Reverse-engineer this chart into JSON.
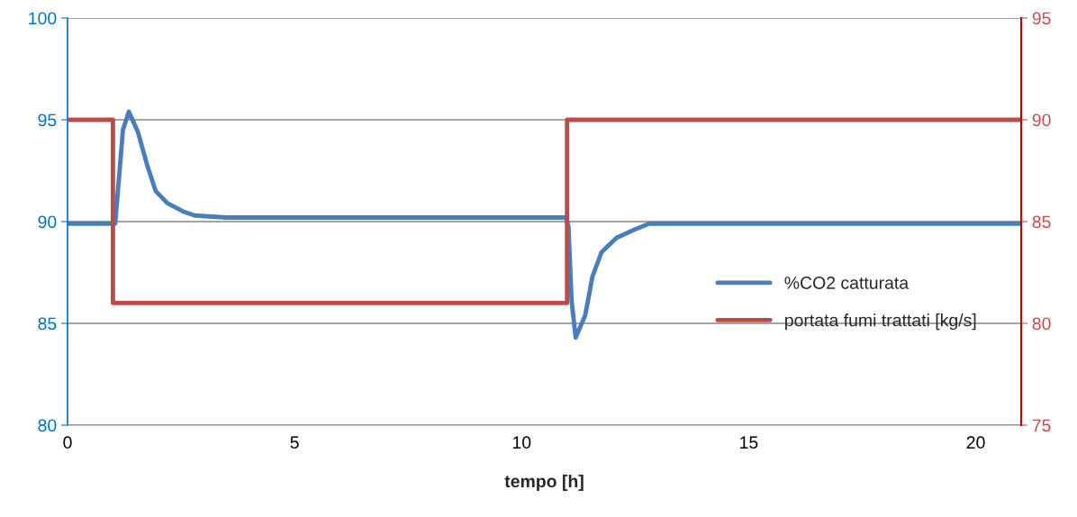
{
  "chart_data": {
    "type": "line",
    "xlabel": "tempo [h]",
    "xlim": [
      0,
      21
    ],
    "xticks": [
      0,
      5,
      10,
      15,
      20
    ],
    "ylim": [
      80,
      100
    ],
    "yticks": [
      80,
      85,
      90,
      95,
      100
    ],
    "y2lim": [
      75,
      95
    ],
    "y2ticks": [
      75,
      80,
      85,
      90,
      95
    ],
    "grid": "y",
    "legend": "right",
    "marker": "none",
    "line_style": "solid",
    "series": [
      {
        "name": "%CO2 catturata",
        "color": "#4a7ebb",
        "x": [
          0,
          0.95,
          1.05,
          1.22,
          1.35,
          1.55,
          1.75,
          1.94,
          2.2,
          2.54,
          2.8,
          3.5,
          10.97,
          11.03,
          11.1,
          11.19,
          11.4,
          11.56,
          11.76,
          12.09,
          12.48,
          12.81,
          14,
          21
        ],
        "values": [
          89.9,
          89.9,
          89.9,
          94.5,
          95.4,
          94.4,
          92.8,
          91.5,
          90.9,
          90.5,
          90.3,
          90.2,
          90.2,
          89.8,
          86.1,
          84.3,
          85.4,
          87.3,
          88.5,
          89.2,
          89.6,
          89.9,
          89.9,
          89.9
        ]
      },
      {
        "name": "portata fumi trattati [kg/s]",
        "color": "#be4b48",
        "axis": "y2",
        "x": [
          0,
          1,
          1,
          11,
          11,
          21
        ],
        "values": [
          90,
          90,
          81,
          81,
          90,
          90
        ]
      }
    ]
  }
}
